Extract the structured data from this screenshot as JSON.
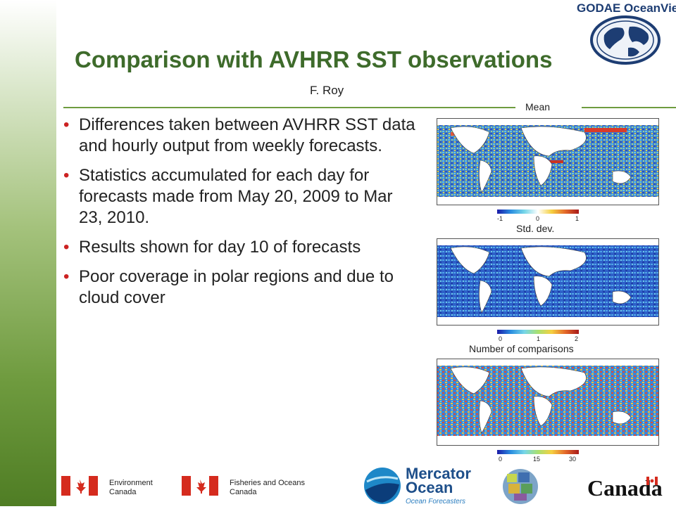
{
  "header": {
    "title": "Comparison with AVHRR SST observations",
    "author": "F. Roy",
    "logo_text": "GODAE OceanView"
  },
  "bullets": [
    "Differences taken between AVHRR SST data and hourly output from weekly forecasts.",
    "Statistics accumulated for each day for forecasts made from May 20, 2009 to Mar 23, 2010.",
    "Results shown for day 10 of forecasts",
    "Poor coverage in polar regions and due to cloud cover"
  ],
  "maps": [
    {
      "label": "Mean",
      "ticks": [
        "-1",
        "0",
        "1"
      ]
    },
    {
      "label": "Std. dev.",
      "ticks": [
        "0",
        "1",
        "2"
      ]
    },
    {
      "label": "Number of comparisons",
      "ticks": [
        "0",
        "15",
        "30"
      ]
    }
  ],
  "footer": {
    "environment_canada": [
      "Environment",
      "Canada"
    ],
    "fisheries_oceans": [
      "Fisheries and Oceans",
      "Canada"
    ],
    "mercator": [
      "Mercator",
      "Ocean",
      "Ocean Forecasters"
    ],
    "canada_wordmark": "Canada"
  },
  "colors": {
    "title_green": "#3e6b2b",
    "bullet_red": "#cc2222",
    "rule_green": "#6e9c3f"
  }
}
